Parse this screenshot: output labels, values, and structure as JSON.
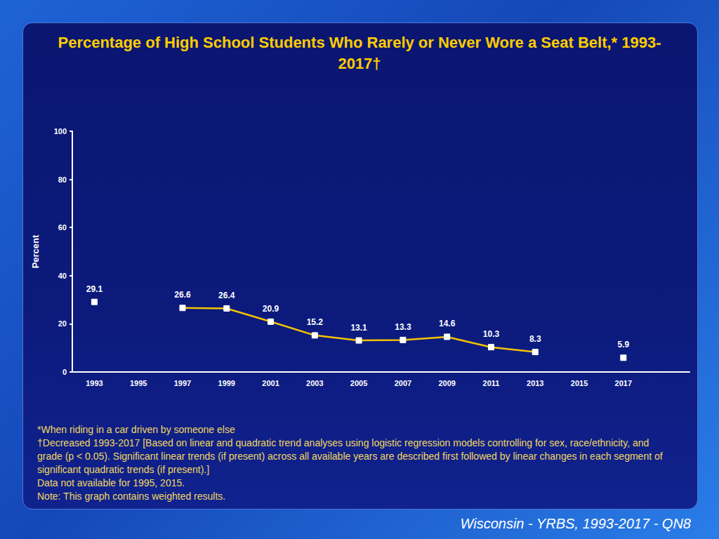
{
  "chart_data": {
    "type": "line",
    "title": "Percentage of High School Students Who Rarely or Never Wore a Seat Belt,* 1993-2017†",
    "y_label": "Percent",
    "categories": [
      "1993",
      "1995",
      "1997",
      "1999",
      "2001",
      "2003",
      "2005",
      "2007",
      "2009",
      "2011",
      "2013",
      "2015",
      "2017",
      null
    ],
    "values": [
      29.1,
      null,
      26.6,
      26.4,
      20.9,
      15.2,
      13.1,
      13.3,
      14.6,
      10.3,
      8.3,
      null,
      5.9,
      null
    ],
    "color": "#f5c400",
    "marker": "square",
    "data_labels": true,
    "grid": false,
    "ylim": [
      0,
      100
    ],
    "yticks": [
      0,
      20,
      40,
      60,
      80,
      100
    ],
    "annotations": [
      "*When riding in a car driven by someone else",
      "†Decreased 1993-2017 [Based on linear and quadratic trend analyses using logistic regression models controlling for sex, race/ethnicity, and grade (p < 0.05). Significant linear trends (if present) across all available years are described first followed by linear changes in each segment of significant quadratic trends (if present).]",
      "Data not available for 1995, 2015.",
      "Note: This graph contains weighted results."
    ],
    "source": "Wisconsin - YRBS, 1993-2017 - QN8"
  }
}
